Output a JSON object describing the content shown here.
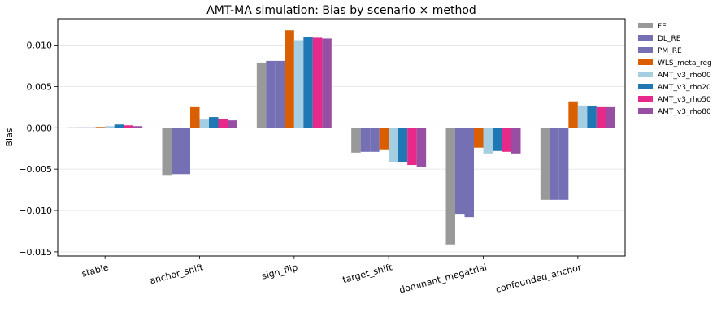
{
  "chart_data": {
    "type": "bar",
    "title": "AMT-MA simulation: Bias by scenario × method",
    "xlabel": "",
    "ylabel": "Bias",
    "ylim": [
      -0.0155,
      0.0132
    ],
    "yticks": [
      0.01,
      0.005,
      0.0,
      -0.005,
      -0.01,
      -0.015
    ],
    "ytick_labels": [
      "0.010",
      "0.005",
      "0.000",
      "−0.005",
      "−0.010",
      "−0.015"
    ],
    "grid": "horizontal",
    "legend_position": "outside-right",
    "categories": [
      "stable",
      "anchor_shift",
      "sign_flip",
      "target_shift",
      "dominant_megatrial",
      "confounded_anchor"
    ],
    "series": [
      {
        "name": "FE",
        "color": "#999999",
        "values": [
          5e-05,
          -0.0057,
          0.0079,
          -0.003,
          -0.0141,
          -0.0087
        ]
      },
      {
        "name": "DL_RE",
        "color": "#7570b3",
        "values": [
          5e-05,
          -0.0056,
          0.0081,
          -0.0029,
          -0.0104,
          -0.0087
        ]
      },
      {
        "name": "PM_RE",
        "color": "#7570b3",
        "values": [
          5e-05,
          -0.0056,
          0.0081,
          -0.0029,
          -0.0108,
          -0.0087
        ]
      },
      {
        "name": "WLS_meta_reg",
        "color": "#d95f02",
        "values": [
          0.0001,
          0.0025,
          0.0118,
          -0.0026,
          -0.0024,
          0.0032
        ]
      },
      {
        "name": "AMT_v3_rho00",
        "color": "#a6cee3",
        "values": [
          0.0002,
          0.001,
          0.0106,
          -0.0041,
          -0.0031,
          0.0027
        ]
      },
      {
        "name": "AMT_v3_rho20",
        "color": "#1f78b4",
        "values": [
          0.0004,
          0.0013,
          0.011,
          -0.0041,
          -0.0028,
          0.0026
        ]
      },
      {
        "name": "AMT_v3_rho50",
        "color": "#e7298a",
        "values": [
          0.0003,
          0.0011,
          0.0109,
          -0.0045,
          -0.0029,
          0.0025
        ]
      },
      {
        "name": "AMT_v3_rho80",
        "color": "#984ea3",
        "values": [
          0.0002,
          0.0009,
          0.0108,
          -0.0047,
          -0.0031,
          0.0025
        ]
      }
    ]
  }
}
